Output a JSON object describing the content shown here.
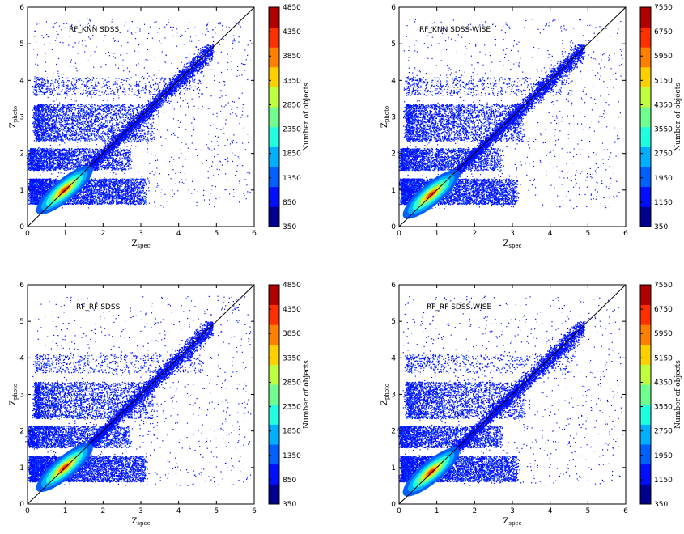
{
  "chart_data": [
    {
      "type": "heatmap",
      "title": "RF_KNN SDSS",
      "xlabel": "z_spec",
      "ylabel": "z_photo",
      "xlim": [
        0,
        6
      ],
      "ylim": [
        0,
        6
      ],
      "x_ticks": [
        "0",
        "1",
        "2",
        "3",
        "4",
        "5",
        "6"
      ],
      "y_ticks": [
        "0",
        "1",
        "2",
        "3",
        "4",
        "5",
        "6"
      ],
      "diagonal_line": "z_photo = z_spec",
      "colorbar": {
        "label": "Number of objects",
        "levels": [
          350,
          850,
          1350,
          1850,
          2350,
          2850,
          3350,
          3850,
          4350,
          4850
        ],
        "tick_labels": [
          "350",
          "850",
          "1350",
          "1850",
          "2350",
          "2850",
          "3350",
          "3850",
          "4350",
          "4850"
        ],
        "colors": [
          "#00008f",
          "#0010ff",
          "#0060ff",
          "#00b0ff",
          "#20ffdf",
          "#70ff8f",
          "#c0ff3f",
          "#ffd000",
          "#ff8000",
          "#ff3000",
          "#b00000"
        ]
      }
    },
    {
      "type": "heatmap",
      "title": "RF_KNN SDSS-WISE",
      "xlabel": "z_spec",
      "ylabel": "z_photo",
      "xlim": [
        0,
        6
      ],
      "ylim": [
        0,
        6
      ],
      "x_ticks": [
        "0",
        "1",
        "2",
        "3",
        "4",
        "5",
        "6"
      ],
      "y_ticks": [
        "0",
        "1",
        "2",
        "3",
        "4",
        "5",
        "6"
      ],
      "diagonal_line": "z_photo = z_spec",
      "colorbar": {
        "label": "Number of objects",
        "levels": [
          350,
          1150,
          1950,
          2750,
          3550,
          4350,
          5150,
          5950,
          6750,
          7550
        ],
        "tick_labels": [
          "350",
          "1150",
          "1950",
          "2750",
          "3550",
          "4350",
          "5150",
          "5950",
          "6750",
          "7550"
        ],
        "colors": [
          "#00008f",
          "#0010ff",
          "#0060ff",
          "#00b0ff",
          "#20ffdf",
          "#70ff8f",
          "#c0ff3f",
          "#ffd000",
          "#ff8000",
          "#ff3000",
          "#b00000"
        ]
      }
    },
    {
      "type": "heatmap",
      "title": "RF_RF SDSS",
      "xlabel": "z_spec",
      "ylabel": "z_photo",
      "xlim": [
        0,
        6
      ],
      "ylim": [
        0,
        6
      ],
      "x_ticks": [
        "0",
        "1",
        "2",
        "3",
        "4",
        "5",
        "6"
      ],
      "y_ticks": [
        "0",
        "1",
        "2",
        "3",
        "4",
        "5",
        "6"
      ],
      "diagonal_line": "z_photo = z_spec",
      "colorbar": {
        "label": "Number of objects",
        "levels": [
          350,
          850,
          1350,
          1850,
          2350,
          2850,
          3350,
          3850,
          4350,
          4850
        ],
        "tick_labels": [
          "350",
          "850",
          "1350",
          "1850",
          "2350",
          "2850",
          "3350",
          "3850",
          "4350",
          "4850"
        ],
        "colors": [
          "#00008f",
          "#0010ff",
          "#0060ff",
          "#00b0ff",
          "#20ffdf",
          "#70ff8f",
          "#c0ff3f",
          "#ffd000",
          "#ff8000",
          "#ff3000",
          "#b00000"
        ]
      }
    },
    {
      "type": "heatmap",
      "title": "RF_RF SDSS-WISE",
      "xlabel": "z_spec",
      "ylabel": "z_photo",
      "xlim": [
        0,
        6
      ],
      "ylim": [
        0,
        6
      ],
      "x_ticks": [
        "0",
        "1",
        "2",
        "3",
        "4",
        "5",
        "6"
      ],
      "y_ticks": [
        "0",
        "1",
        "2",
        "3",
        "4",
        "5",
        "6"
      ],
      "diagonal_line": "z_photo = z_spec",
      "colorbar": {
        "label": "Number of objects",
        "levels": [
          350,
          1150,
          1950,
          2750,
          3550,
          4350,
          5150,
          5950,
          6750,
          7550
        ],
        "tick_labels": [
          "350",
          "1150",
          "1950",
          "2750",
          "3550",
          "4350",
          "5150",
          "5950",
          "6750",
          "7550"
        ],
        "colors": [
          "#00008f",
          "#0010ff",
          "#0060ff",
          "#00b0ff",
          "#20ffdf",
          "#70ff8f",
          "#c0ff3f",
          "#ffd000",
          "#ff8000",
          "#ff3000",
          "#b00000"
        ]
      }
    }
  ]
}
